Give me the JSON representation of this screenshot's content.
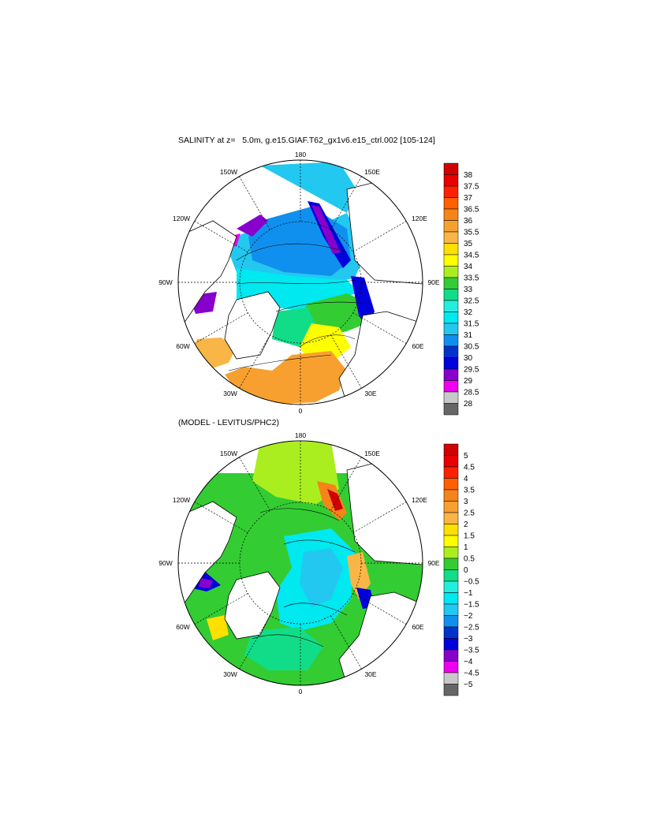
{
  "panels": [
    {
      "id": "salinity",
      "title": "SALINITY at z=   5.0m, g.e15.GIAF.T62_gx1v6.e15_ctrl.002 [105-124]",
      "lon_labels": [
        "180",
        "150E",
        "120E",
        "90E",
        "60E",
        "30E",
        "0",
        "30W",
        "60W",
        "90W",
        "120W",
        "150W"
      ],
      "colorbar": {
        "labels": [
          "38",
          "37.5",
          "37",
          "36.5",
          "36",
          "35.5",
          "35",
          "34.5",
          "34",
          "33.5",
          "33",
          "32.5",
          "32",
          "31.5",
          "31",
          "30.5",
          "30",
          "29.5",
          "29",
          "28.5",
          "28"
        ],
        "colors": [
          "#d10000",
          "#e80000",
          "#ff2000",
          "#ff6000",
          "#f58518",
          "#f7a030",
          "#f9b545",
          "#ffe000",
          "#ffff00",
          "#aaee20",
          "#33cc33",
          "#11dd88",
          "#22eedd",
          "#00e8f0",
          "#22c8f0",
          "#1090ee",
          "#0033cc",
          "#0000dd",
          "#8800cc",
          "#ee00ee",
          "#c8c8c8",
          "#666666"
        ]
      }
    },
    {
      "id": "difference",
      "title": "(MODEL - LEVITUS/PHC2)",
      "lon_labels": [
        "180",
        "150E",
        "120E",
        "90E",
        "60E",
        "30E",
        "0",
        "30W",
        "60W",
        "90W",
        "120W",
        "150W"
      ],
      "colorbar": {
        "labels": [
          "5",
          "4.5",
          "4",
          "3.5",
          "3",
          "2.5",
          "2",
          "1.5",
          "1",
          "0.5",
          "0",
          "−0.5",
          "−1",
          "−1.5",
          "−2",
          "−2.5",
          "−3",
          "−3.5",
          "−4",
          "−4.5",
          "−5"
        ],
        "colors": [
          "#d10000",
          "#e80000",
          "#ff2000",
          "#ff6000",
          "#f58518",
          "#f7a030",
          "#f9b545",
          "#ffe000",
          "#ffff00",
          "#aaee20",
          "#33cc33",
          "#11dd88",
          "#22eedd",
          "#00e8f0",
          "#22c8f0",
          "#1090ee",
          "#0033cc",
          "#0000dd",
          "#8800cc",
          "#ee00ee",
          "#c8c8c8",
          "#666666"
        ]
      }
    }
  ]
}
